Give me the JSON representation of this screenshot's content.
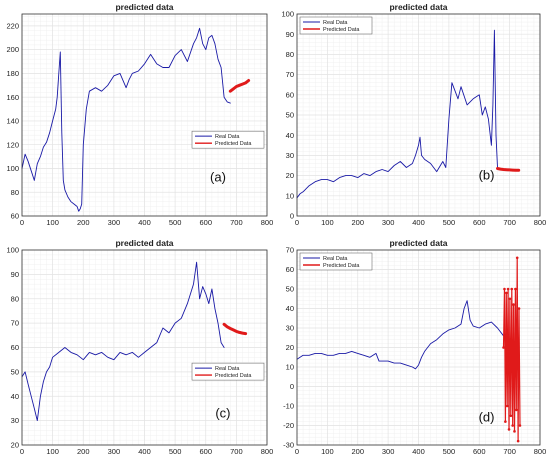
{
  "colors": {
    "real": "#1a1aa6",
    "predicted": "#e01a1a",
    "grid": "#e3e3e3",
    "axis": "#333333"
  },
  "chart_data": [
    {
      "type": "line",
      "panel_label": "(a)",
      "title": "predicted data",
      "xlabel": "",
      "ylabel": "",
      "xlim": [
        0,
        800
      ],
      "ylim": [
        60,
        230
      ],
      "xticks": [
        0,
        100,
        200,
        300,
        400,
        500,
        600,
        700,
        800
      ],
      "yticks": [
        60,
        80,
        100,
        120,
        140,
        160,
        180,
        200,
        220
      ],
      "grid": true,
      "legend_position": "lower-right",
      "series": [
        {
          "name": "Real Data",
          "color": "#1a1aa6",
          "marker": "none",
          "x": [
            0,
            10,
            20,
            30,
            40,
            50,
            60,
            70,
            80,
            90,
            100,
            110,
            115,
            120,
            125,
            130,
            135,
            140,
            150,
            160,
            170,
            180,
            185,
            190,
            195,
            200,
            210,
            220,
            240,
            260,
            280,
            300,
            320,
            340,
            350,
            360,
            380,
            400,
            420,
            440,
            460,
            480,
            500,
            520,
            540,
            560,
            570,
            580,
            590,
            600,
            610,
            620,
            630,
            640,
            650,
            660,
            670,
            680
          ],
          "y": [
            100,
            112,
            106,
            98,
            90,
            104,
            110,
            118,
            122,
            130,
            140,
            150,
            160,
            180,
            198,
            130,
            90,
            82,
            76,
            72,
            70,
            68,
            64,
            66,
            70,
            120,
            150,
            165,
            168,
            165,
            170,
            178,
            180,
            168,
            175,
            180,
            182,
            188,
            196,
            188,
            185,
            185,
            195,
            200,
            190,
            205,
            210,
            218,
            205,
            200,
            210,
            212,
            205,
            192,
            185,
            160,
            156,
            155
          ]
        },
        {
          "name": "Predicted Data",
          "color": "#e01a1a",
          "marker": "none",
          "x": [
            680,
            690,
            700,
            710,
            720,
            730,
            740
          ],
          "y": [
            165,
            167,
            169,
            170,
            171,
            172,
            174
          ]
        }
      ]
    },
    {
      "type": "line",
      "panel_label": "(b)",
      "title": "predicted data",
      "xlabel": "",
      "ylabel": "",
      "xlim": [
        0,
        800
      ],
      "ylim": [
        0,
        100
      ],
      "xticks": [
        0,
        100,
        200,
        300,
        400,
        500,
        600,
        700,
        800
      ],
      "yticks": [
        0,
        10,
        20,
        30,
        40,
        50,
        60,
        70,
        80,
        90,
        100
      ],
      "grid": true,
      "legend_position": "top-left",
      "series": [
        {
          "name": "Real Data",
          "color": "#1a1aa6",
          "marker": "none",
          "x": [
            0,
            10,
            20,
            40,
            60,
            80,
            100,
            120,
            140,
            160,
            180,
            200,
            220,
            240,
            260,
            280,
            300,
            320,
            340,
            360,
            380,
            390,
            400,
            405,
            410,
            420,
            440,
            460,
            480,
            490,
            500,
            510,
            520,
            530,
            540,
            560,
            580,
            600,
            610,
            620,
            630,
            640,
            645,
            650,
            655,
            660
          ],
          "y": [
            9,
            11,
            12,
            15,
            17,
            18,
            18,
            17,
            19,
            20,
            20,
            19,
            21,
            20,
            22,
            23,
            22,
            25,
            27,
            24,
            26,
            30,
            35,
            39,
            30,
            28,
            26,
            22,
            27,
            24,
            48,
            66,
            62,
            58,
            64,
            55,
            58,
            60,
            50,
            54,
            48,
            35,
            55,
            92,
            40,
            24
          ]
        },
        {
          "name": "Predicted Data",
          "color": "#e01a1a",
          "marker": "none",
          "x": [
            660,
            670,
            680,
            690,
            700,
            710,
            720,
            730
          ],
          "y": [
            23.5,
            23.2,
            23.0,
            22.9,
            22.8,
            22.7,
            22.6,
            22.6
          ]
        }
      ]
    },
    {
      "type": "line",
      "panel_label": "(c)",
      "title": "predicted data",
      "xlabel": "",
      "ylabel": "",
      "xlim": [
        0,
        800
      ],
      "ylim": [
        20,
        100
      ],
      "xticks": [
        0,
        100,
        200,
        300,
        400,
        500,
        600,
        700,
        800
      ],
      "yticks": [
        20,
        30,
        40,
        50,
        60,
        70,
        80,
        90,
        100
      ],
      "grid": true,
      "legend_position": "lower-right",
      "series": [
        {
          "name": "Real Data",
          "color": "#1a1aa6",
          "marker": "none",
          "x": [
            0,
            10,
            20,
            30,
            40,
            50,
            60,
            70,
            80,
            90,
            100,
            120,
            140,
            160,
            180,
            200,
            220,
            240,
            260,
            280,
            300,
            320,
            340,
            360,
            380,
            400,
            420,
            440,
            460,
            480,
            500,
            520,
            540,
            560,
            570,
            580,
            590,
            600,
            610,
            620,
            630,
            640,
            650,
            660
          ],
          "y": [
            48,
            50,
            45,
            40,
            35,
            30,
            40,
            46,
            50,
            52,
            56,
            58,
            60,
            58,
            57,
            55,
            58,
            57,
            58,
            56,
            55,
            58,
            57,
            58,
            56,
            58,
            60,
            62,
            68,
            66,
            70,
            72,
            78,
            86,
            95,
            80,
            85,
            82,
            78,
            84,
            76,
            70,
            62,
            60
          ]
        },
        {
          "name": "Predicted Data",
          "color": "#e01a1a",
          "marker": "none",
          "x": [
            660,
            670,
            680,
            690,
            700,
            710,
            720,
            730
          ],
          "y": [
            69.5,
            68.5,
            67.8,
            67.2,
            66.6,
            66.2,
            65.9,
            65.7
          ]
        }
      ]
    },
    {
      "type": "line",
      "panel_label": "(d)",
      "title": "predicted data",
      "xlabel": "",
      "ylabel": "",
      "xlim": [
        0,
        800
      ],
      "ylim": [
        -30,
        70
      ],
      "xticks": [
        0,
        100,
        200,
        300,
        400,
        500,
        600,
        700,
        800
      ],
      "yticks": [
        -30,
        -20,
        -10,
        0,
        10,
        20,
        30,
        40,
        50,
        60,
        70
      ],
      "grid": true,
      "legend_position": "top-left",
      "series": [
        {
          "name": "Real Data",
          "color": "#1a1aa6",
          "marker": "none",
          "x": [
            0,
            20,
            40,
            60,
            80,
            100,
            120,
            140,
            160,
            180,
            200,
            220,
            240,
            260,
            270,
            280,
            300,
            320,
            340,
            360,
            380,
            390,
            400,
            410,
            420,
            440,
            460,
            480,
            500,
            520,
            540,
            550,
            560,
            570,
            580,
            600,
            620,
            640,
            660,
            680
          ],
          "y": [
            14,
            16,
            16,
            17,
            17,
            16,
            16,
            17,
            17,
            18,
            17,
            16,
            15,
            17,
            13,
            13,
            13,
            12,
            12,
            11,
            10,
            9,
            11,
            15,
            18,
            22,
            24,
            27,
            29,
            30,
            32,
            40,
            44,
            34,
            31,
            30,
            32,
            33,
            30,
            26
          ]
        },
        {
          "name": "Predicted Data",
          "color": "#e01a1a",
          "marker": "dot",
          "x": [
            680,
            683,
            686,
            689,
            692,
            695,
            698,
            701,
            704,
            707,
            710,
            713,
            716,
            719,
            722,
            725,
            728,
            731,
            734
          ],
          "y": [
            20,
            50,
            -18,
            48,
            -10,
            50,
            -22,
            45,
            -15,
            50,
            -20,
            42,
            -23,
            50,
            -12,
            66,
            -28,
            40,
            -20
          ]
        }
      ]
    }
  ]
}
